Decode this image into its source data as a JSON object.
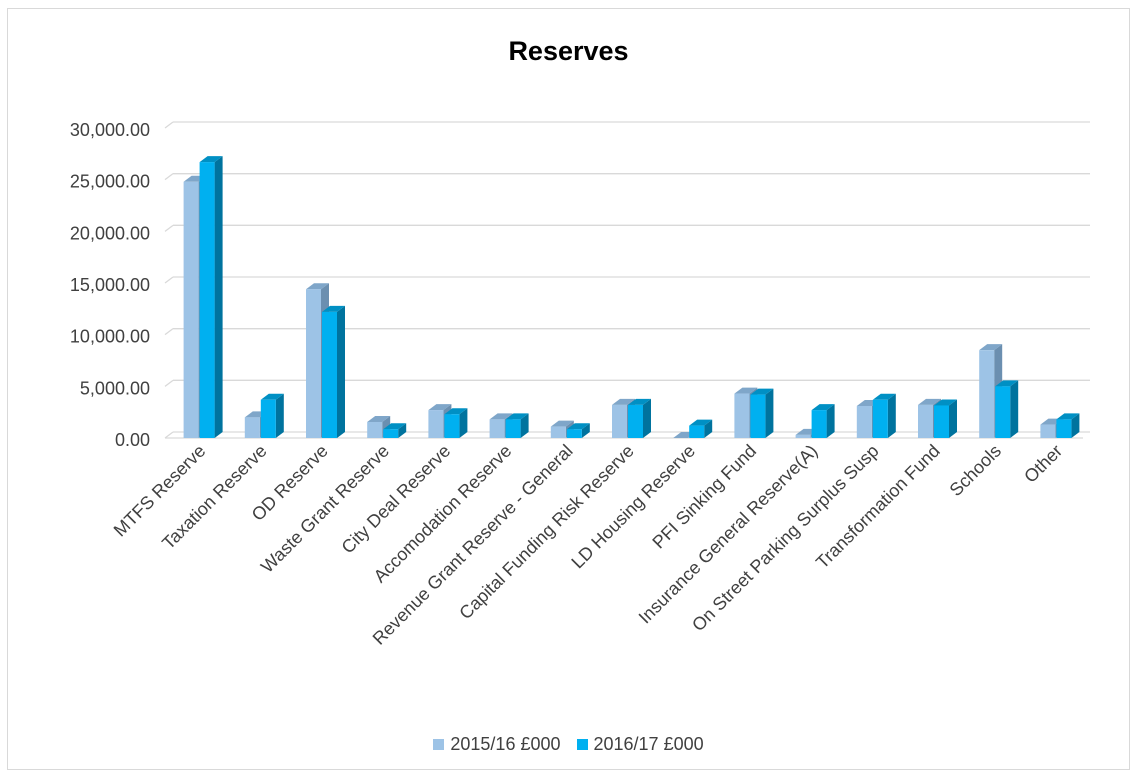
{
  "chart_data": {
    "type": "bar",
    "title": "Reserves",
    "categories": [
      "MTFS Reserve",
      "Taxation Reserve",
      "OD Reserve",
      "Waste Grant Reserve",
      "City Deal Reserve",
      "Accomodation Reserve",
      "Revenue Grant Reserve - General",
      "Capital Funding Risk Reserve",
      "LD Housing Reserve",
      "PFI Sinking Fund",
      "Insurance General Reserve(A)",
      "On Street Parking Surplus Susp",
      "Transformation Fund",
      "Schools",
      "Other"
    ],
    "series": [
      {
        "name": "2015/16 £000",
        "color": "#9dc3e6",
        "values": [
          24800,
          2000,
          14400,
          1550,
          2700,
          1800,
          1100,
          3200,
          0,
          4300,
          300,
          3100,
          3200,
          8500,
          1300
        ]
      },
      {
        "name": "2016/17 £000",
        "color": "#00b0f0",
        "values": [
          26700,
          3700,
          12200,
          850,
          2300,
          1800,
          850,
          3200,
          1200,
          4200,
          2700,
          3700,
          3150,
          5000,
          1800
        ]
      }
    ],
    "ylim": [
      0,
      30000
    ],
    "yticks": [
      "0.00",
      "5,000.00",
      "10,000.00",
      "15,000.00",
      "20,000.00",
      "25,000.00",
      "30,000.00"
    ],
    "grid": true,
    "legend": "bottom"
  }
}
